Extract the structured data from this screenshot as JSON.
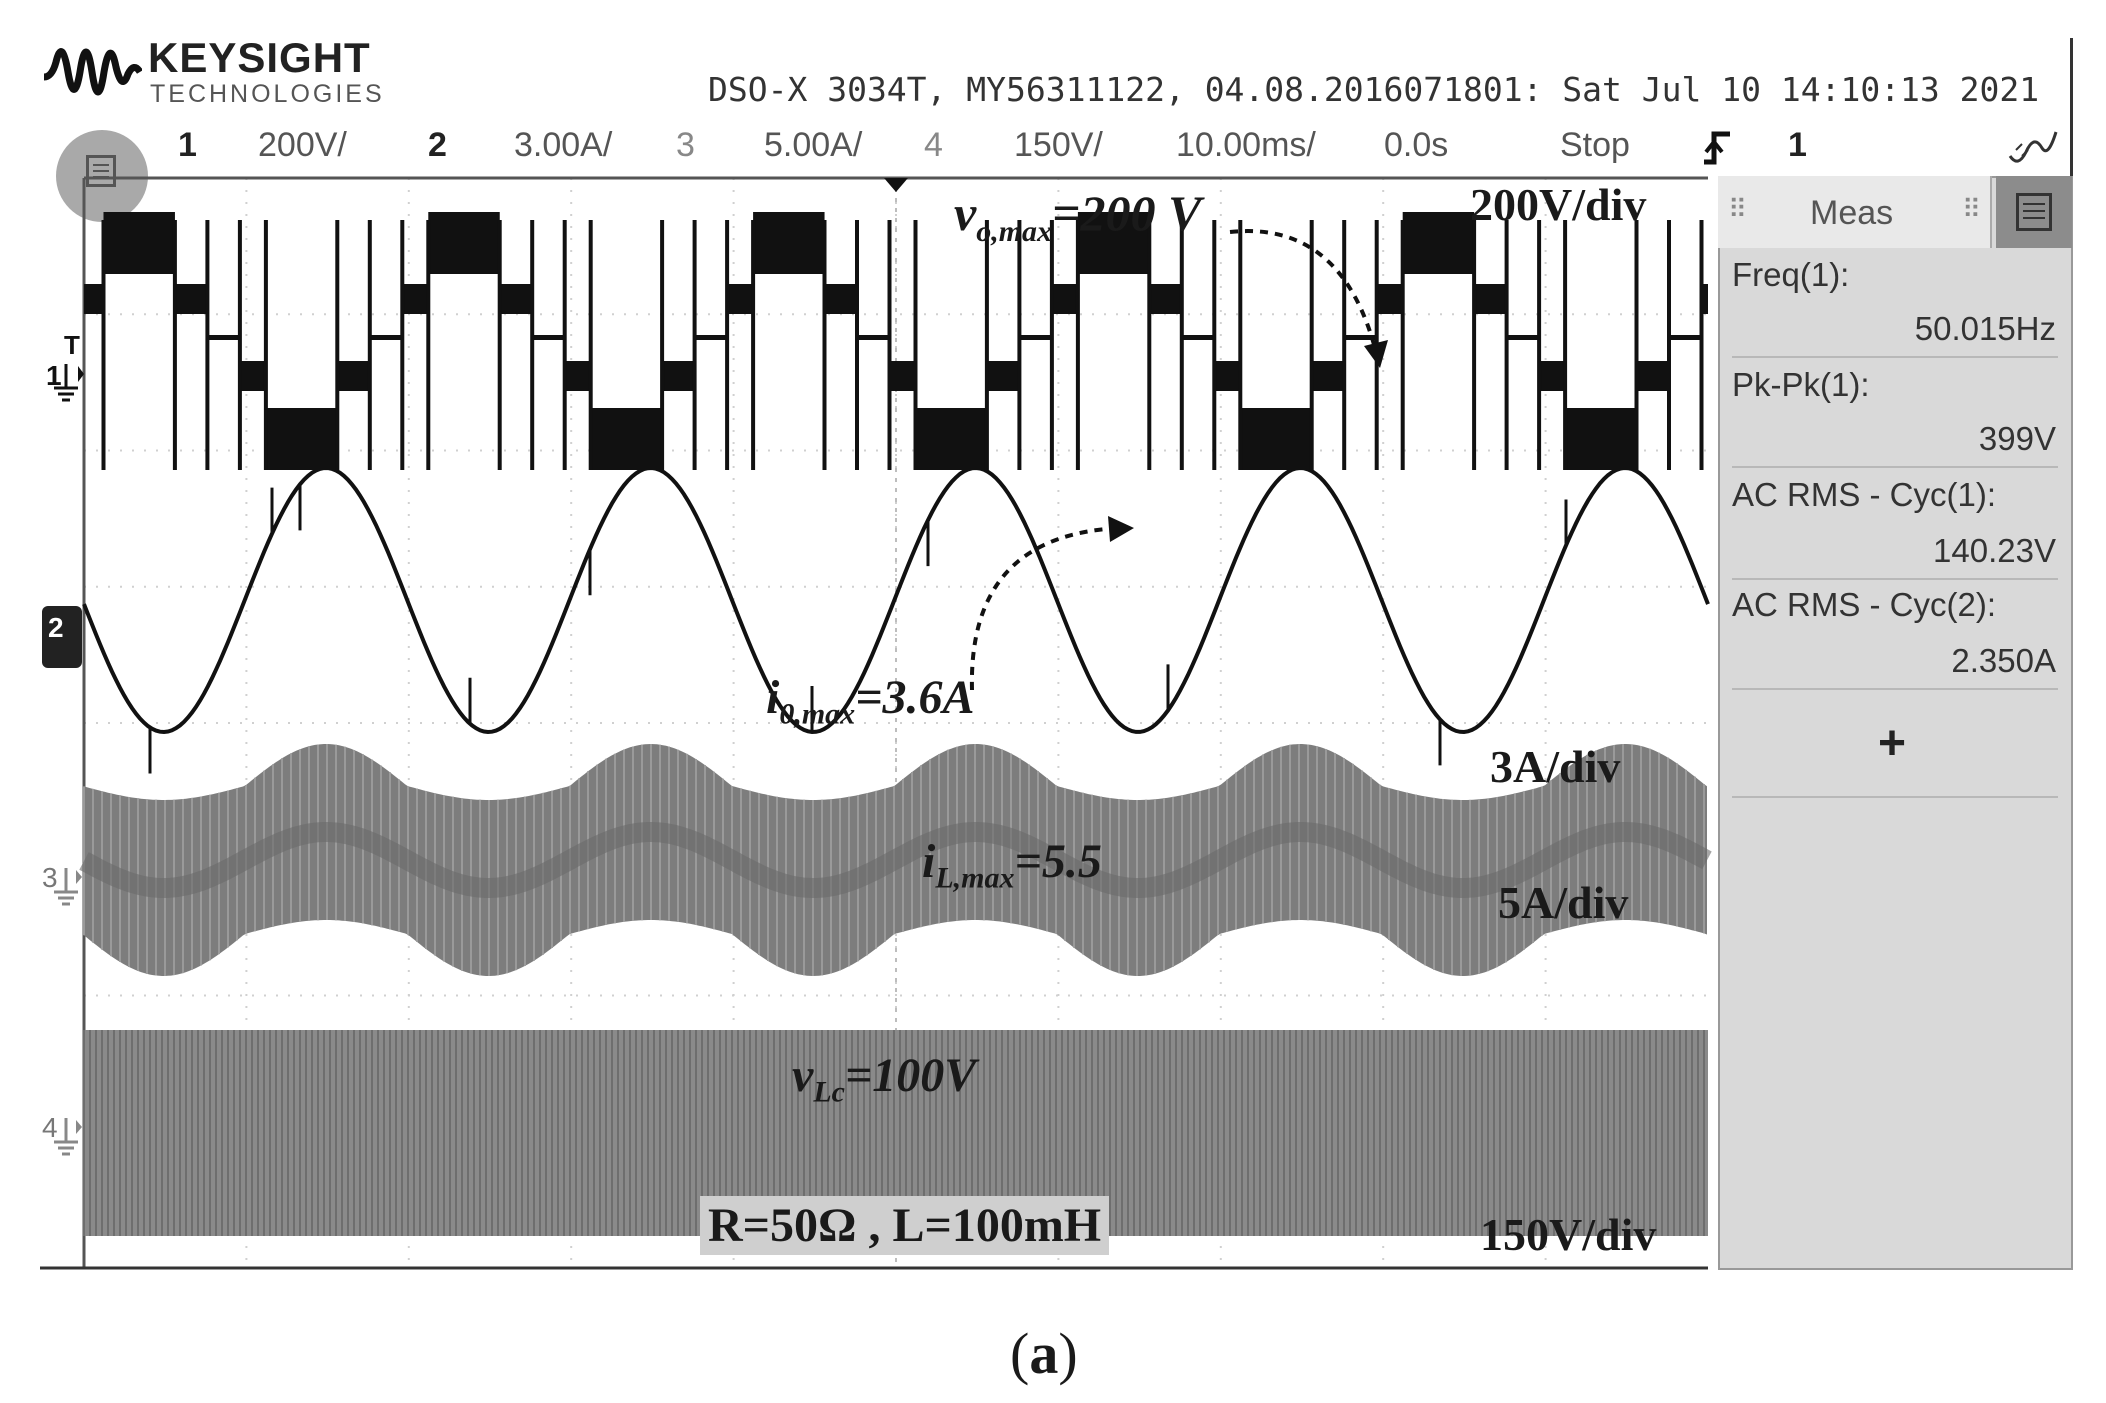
{
  "header": {
    "brand": "KEYSIGHT",
    "brand_sub": "TECHNOLOGIES",
    "device_info": "DSO-X 3034T, MY56311122, 04.08.2016071801: Sat Jul 10 14:10:13 2021"
  },
  "channel_bar": {
    "ch1_num": "1",
    "ch1_scale": "200V/",
    "ch2_num": "2",
    "ch2_scale": "3.00A/",
    "ch3_num": "3",
    "ch3_scale": "5.00A/",
    "ch4_num": "4",
    "ch4_scale": "150V/",
    "timebase": "10.00ms/",
    "delay": "0.0s",
    "run_state": "Stop",
    "trigger_channel": "1"
  },
  "channel_markers": {
    "ch1": "1",
    "ch2": "2",
    "ch3": "3",
    "ch4": "4",
    "trigger": "T"
  },
  "meas_panel": {
    "title": "Meas",
    "items": [
      {
        "label": "Freq(1):",
        "value": "50.015Hz"
      },
      {
        "label": "Pk-Pk(1):",
        "value": "399V"
      },
      {
        "label": "AC RMS - Cyc(1):",
        "value": "140.23V"
      },
      {
        "label": "AC RMS - Cyc(2):",
        "value": "2.350A"
      }
    ],
    "add_label": "+"
  },
  "annotations": {
    "vo_sym": "v",
    "vo_sub": "o,max",
    "vo_val": "=200 V",
    "io_sym": "i",
    "io_sub": "0,max",
    "io_val": "=3.6A",
    "il_sym": "i",
    "il_sub": "L,max",
    "il_val": "=5.5",
    "vlc_sym": "v",
    "vlc_sub": "Lc",
    "vlc_val": "=100V",
    "scale_ch1": "200V/div",
    "scale_ch2": "3A/div",
    "scale_ch3": "5A/div",
    "scale_ch4": "150V/div",
    "conditions": "R=50Ω , L=100mH"
  },
  "figure_label": {
    "open": "(",
    "letter": "a",
    "close": ")"
  },
  "waveforms": {
    "cycles_shown": 5,
    "ch1": {
      "kind": "multilevel staircase",
      "levels": 5
    },
    "ch2": {
      "kind": "sine"
    },
    "ch3": {
      "kind": "ripple current band",
      "color": "#7a7a7a"
    },
    "ch4": {
      "kind": "switching voltage band",
      "color": "#8a8a8a"
    }
  },
  "colors": {
    "trace_dark": "#111111",
    "trace_gray": "#7a7a7a",
    "grid": "#cccccc",
    "panel": "#d9d9d9"
  }
}
